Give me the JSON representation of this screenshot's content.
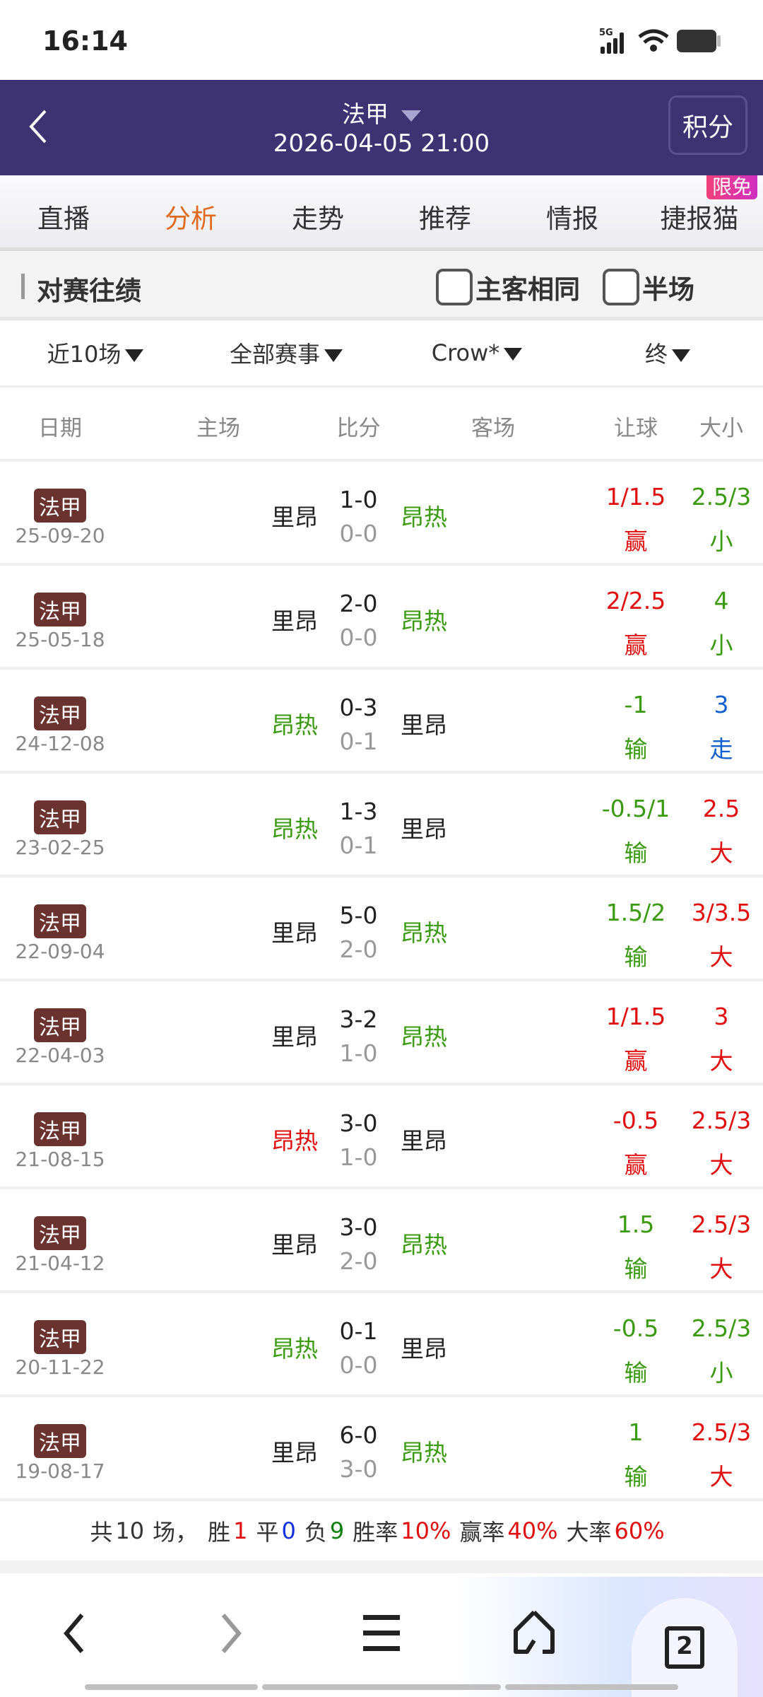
{
  "status": {
    "time": "16:14",
    "network": "5G"
  },
  "header": {
    "league": "法甲",
    "datetime": "2026-04-05 21:00",
    "standings_button": "积分"
  },
  "tabs": [
    {
      "label": "直播"
    },
    {
      "label": "分析",
      "active": true
    },
    {
      "label": "走势"
    },
    {
      "label": "推荐"
    },
    {
      "label": "情报"
    },
    {
      "label": "捷报猫",
      "badge": "限免"
    }
  ],
  "section": {
    "title": "对赛往绩",
    "same_home_away": "主客相同",
    "half_time": "半场"
  },
  "filters": [
    "近10场",
    "全部赛事",
    "Crow*",
    "终"
  ],
  "columns": [
    "日期",
    "主场",
    "比分",
    "客场",
    "让球",
    "大小"
  ],
  "colors": {
    "win": "#e01010",
    "lose": "#3a9a10",
    "push": "#1060d0",
    "neutral": "#222222",
    "badge": "#6b3330",
    "header": "#3d3272",
    "active_tab": "#e06a20"
  },
  "rows": [
    {
      "league": "法甲",
      "date": "25-09-20",
      "home": "里昂",
      "home_c": "neutral",
      "score": "1-0",
      "half": "0-0",
      "away": "昂热",
      "away_c": "lose",
      "hc": "1/1.5",
      "hc_r": "赢",
      "hc_c": "win",
      "ou": "2.5/3",
      "ou_r": "小",
      "ou_c": "lose"
    },
    {
      "league": "法甲",
      "date": "25-05-18",
      "home": "里昂",
      "home_c": "neutral",
      "score": "2-0",
      "half": "0-0",
      "away": "昂热",
      "away_c": "lose",
      "hc": "2/2.5",
      "hc_r": "赢",
      "hc_c": "win",
      "ou": "4",
      "ou_r": "小",
      "ou_c": "lose"
    },
    {
      "league": "法甲",
      "date": "24-12-08",
      "home": "昂热",
      "home_c": "lose",
      "score": "0-3",
      "half": "0-1",
      "away": "里昂",
      "away_c": "neutral",
      "hc": "-1",
      "hc_r": "输",
      "hc_c": "lose",
      "ou": "3",
      "ou_r": "走",
      "ou_c": "push"
    },
    {
      "league": "法甲",
      "date": "23-02-25",
      "home": "昂热",
      "home_c": "lose",
      "score": "1-3",
      "half": "0-1",
      "away": "里昂",
      "away_c": "neutral",
      "hc": "-0.5/1",
      "hc_r": "输",
      "hc_c": "lose",
      "ou": "2.5",
      "ou_r": "大",
      "ou_c": "win"
    },
    {
      "league": "法甲",
      "date": "22-09-04",
      "home": "里昂",
      "home_c": "neutral",
      "score": "5-0",
      "half": "2-0",
      "away": "昂热",
      "away_c": "lose",
      "hc": "1.5/2",
      "hc_r": "输",
      "hc_c": "lose",
      "ou": "3/3.5",
      "ou_r": "大",
      "ou_c": "win"
    },
    {
      "league": "法甲",
      "date": "22-04-03",
      "home": "里昂",
      "home_c": "neutral",
      "score": "3-2",
      "half": "1-0",
      "away": "昂热",
      "away_c": "lose",
      "hc": "1/1.5",
      "hc_r": "赢",
      "hc_c": "win",
      "ou": "3",
      "ou_r": "大",
      "ou_c": "win"
    },
    {
      "league": "法甲",
      "date": "21-08-15",
      "home": "昂热",
      "home_c": "win",
      "score": "3-0",
      "half": "1-0",
      "away": "里昂",
      "away_c": "neutral",
      "hc": "-0.5",
      "hc_r": "赢",
      "hc_c": "win",
      "ou": "2.5/3",
      "ou_r": "大",
      "ou_c": "win"
    },
    {
      "league": "法甲",
      "date": "21-04-12",
      "home": "里昂",
      "home_c": "neutral",
      "score": "3-0",
      "half": "2-0",
      "away": "昂热",
      "away_c": "lose",
      "hc": "1.5",
      "hc_r": "输",
      "hc_c": "lose",
      "ou": "2.5/3",
      "ou_r": "大",
      "ou_c": "win"
    },
    {
      "league": "法甲",
      "date": "20-11-22",
      "home": "昂热",
      "home_c": "lose",
      "score": "0-1",
      "half": "0-0",
      "away": "里昂",
      "away_c": "neutral",
      "hc": "-0.5",
      "hc_r": "输",
      "hc_c": "lose",
      "ou": "2.5/3",
      "ou_r": "小",
      "ou_c": "lose"
    },
    {
      "league": "法甲",
      "date": "19-08-17",
      "home": "里昂",
      "home_c": "neutral",
      "score": "6-0",
      "half": "3-0",
      "away": "昂热",
      "away_c": "lose",
      "hc": "1",
      "hc_r": "输",
      "hc_c": "lose",
      "ou": "2.5/3",
      "ou_r": "大",
      "ou_c": "win"
    }
  ],
  "summary": {
    "total_label": "共",
    "total": "10",
    "total_unit": "场，",
    "win_label": "胜",
    "win": "1",
    "draw_label": "平",
    "draw": "0",
    "loss_label": "负",
    "loss": "9",
    "win_rate_label": "胜率",
    "win_rate": "10%",
    "hc_rate_label": "赢率",
    "hc_rate": "40%",
    "over_rate_label": "大率",
    "over_rate": "60%"
  },
  "bottom_nav": {
    "tab_count": "2"
  }
}
